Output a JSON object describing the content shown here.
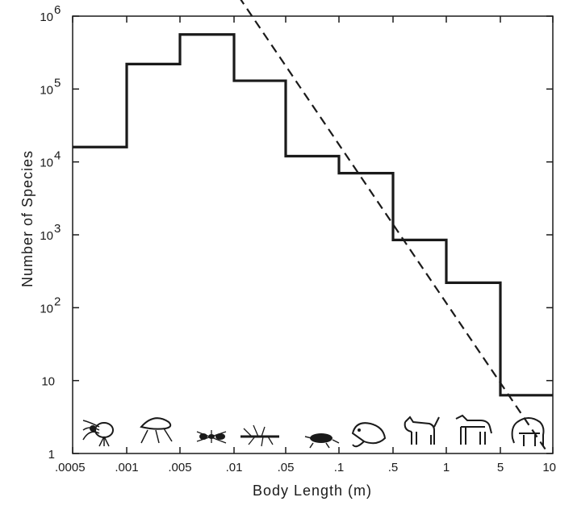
{
  "chart_data": {
    "type": "line",
    "title": "",
    "xlabel": "Body Length (m)",
    "ylabel": "Number of Species",
    "x_scale": "log",
    "y_scale": "log",
    "x_ticks": [
      ".0005",
      ".001",
      ".005",
      ".01",
      ".05",
      ".1",
      ".5",
      "1",
      "5",
      "10"
    ],
    "y_ticks": [
      {
        "base": "1",
        "exp": ""
      },
      {
        "base": "10",
        "exp": ""
      },
      {
        "base": "10",
        "exp": "2"
      },
      {
        "base": "10",
        "exp": "3"
      },
      {
        "base": "10",
        "exp": "4"
      },
      {
        "base": "10",
        "exp": "5"
      },
      {
        "base": "10",
        "exp": "6"
      }
    ],
    "bins": [
      {
        "from": ".0005",
        "to": ".001",
        "species": 16000
      },
      {
        "from": ".001",
        "to": ".005",
        "species": 220000
      },
      {
        "from": ".005",
        "to": ".01",
        "species": 560000
      },
      {
        "from": ".01",
        "to": ".05",
        "species": 130000
      },
      {
        "from": ".05",
        "to": ".1",
        "species": 12000
      },
      {
        "from": ".1",
        "to": ".5",
        "species": 7000
      },
      {
        "from": ".5",
        "to": "1",
        "species": 850
      },
      {
        "from": "1",
        "to": "5",
        "species": 220
      },
      {
        "from": "5",
        "to": "10",
        "species": 6.3
      }
    ],
    "trend_line": {
      "style": "dashed",
      "start_species": 1000000,
      "end_species": 1.5
    },
    "animal_icons": [
      "mite-icon",
      "flea-icon",
      "ant-icon",
      "mayfly-icon",
      "beetle-icon",
      "rat-icon",
      "dog-icon",
      "horse-icon",
      "elephant-icon"
    ],
    "colors": {
      "line": "#1a1a1a",
      "background": "#ffffff"
    }
  }
}
